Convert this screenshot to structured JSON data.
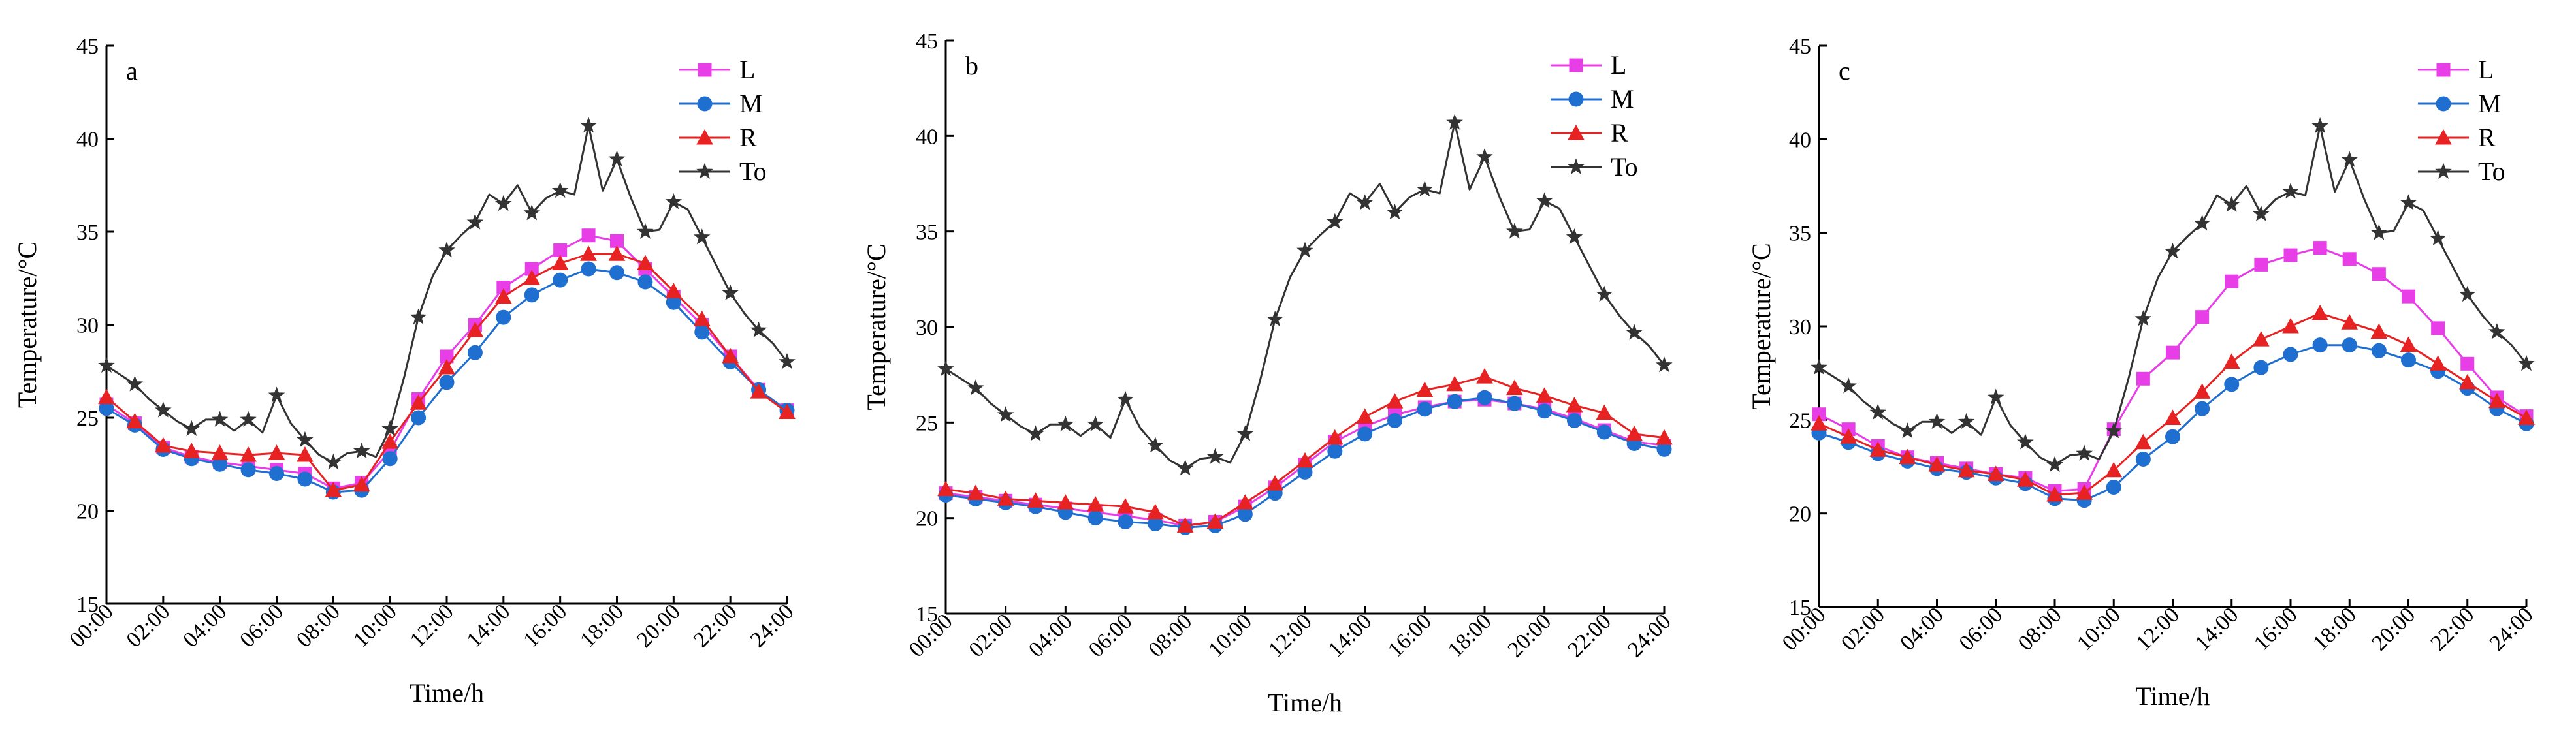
{
  "chart_data": [
    {
      "type": "line",
      "panel_label": "a",
      "xlabel": "Time/h",
      "ylabel": "Temperature/°C",
      "xlim": [
        0,
        24
      ],
      "ylim": [
        15,
        45
      ],
      "xticks": [
        0,
        2,
        4,
        6,
        8,
        10,
        12,
        14,
        16,
        18,
        20,
        22,
        24
      ],
      "xtick_labels": [
        "00:00",
        "02:00",
        "04:00",
        "06:00",
        "08:00",
        "10:00",
        "12:00",
        "14:00",
        "16:00",
        "18:00",
        "20:00",
        "22:00",
        "24:00"
      ],
      "yticks": [
        15,
        20,
        25,
        30,
        35,
        40,
        45
      ],
      "ytick_labels": [
        "15",
        "20",
        "25",
        "30",
        "35",
        "40",
        "45"
      ],
      "legend_position": "top-right",
      "series": [
        {
          "name": "L",
          "color": "#e83ee8",
          "marker": "square",
          "x": [
            0,
            1,
            2,
            3,
            4,
            5,
            6,
            7,
            8,
            9,
            10,
            11,
            12,
            13,
            14,
            15,
            16,
            17,
            18,
            19,
            20,
            21,
            22,
            23,
            24
          ],
          "values": [
            25.7,
            24.7,
            23.4,
            22.9,
            22.6,
            22.4,
            22.2,
            22.0,
            21.2,
            21.5,
            23.2,
            26.0,
            28.3,
            30.0,
            32.0,
            33.0,
            34.0,
            34.8,
            34.5,
            33.0,
            31.5,
            30.0,
            28.3,
            26.5,
            25.4
          ]
        },
        {
          "name": "M",
          "color": "#1f6fd1",
          "marker": "circle",
          "x": [
            0,
            1,
            2,
            3,
            4,
            5,
            6,
            7,
            8,
            9,
            10,
            11,
            12,
            13,
            14,
            15,
            16,
            17,
            18,
            19,
            20,
            21,
            22,
            23,
            24
          ],
          "values": [
            25.5,
            24.6,
            23.3,
            22.8,
            22.5,
            22.2,
            22.0,
            21.7,
            21.0,
            21.1,
            22.8,
            25.0,
            26.9,
            28.5,
            30.4,
            31.6,
            32.4,
            33.0,
            32.8,
            32.3,
            31.2,
            29.6,
            28.0,
            26.5,
            25.4
          ]
        },
        {
          "name": "R",
          "color": "#e62222",
          "marker": "triangle",
          "x": [
            0,
            1,
            2,
            3,
            4,
            5,
            6,
            7,
            8,
            9,
            10,
            11,
            12,
            13,
            14,
            15,
            16,
            17,
            18,
            19,
            20,
            21,
            22,
            23,
            24
          ],
          "values": [
            26.1,
            24.8,
            23.5,
            23.2,
            23.1,
            23.0,
            23.1,
            23.0,
            21.1,
            21.4,
            23.7,
            25.8,
            27.7,
            29.7,
            31.5,
            32.5,
            33.3,
            33.8,
            33.8,
            33.3,
            31.8,
            30.3,
            28.3,
            26.4,
            25.3
          ]
        },
        {
          "name": "To",
          "color": "#333333",
          "marker": "star",
          "x": [
            0,
            0.5,
            1,
            1.5,
            2,
            2.5,
            3,
            3.5,
            4,
            4.5,
            5,
            5.5,
            6,
            6.5,
            7,
            7.5,
            8,
            8.5,
            9,
            9.5,
            10,
            10.5,
            11,
            11.5,
            12,
            12.5,
            13,
            13.5,
            14,
            14.5,
            15,
            15.5,
            16,
            16.5,
            17,
            17.5,
            18,
            18.5,
            19,
            19.5,
            20,
            20.5,
            21,
            21.5,
            22,
            22.5,
            23,
            23.5,
            24
          ],
          "values": [
            27.8,
            27.3,
            26.8,
            26.0,
            25.4,
            24.8,
            24.4,
            24.9,
            24.9,
            24.3,
            24.9,
            24.2,
            26.2,
            24.7,
            23.8,
            23.0,
            22.6,
            23.1,
            23.2,
            22.9,
            24.4,
            27.2,
            30.4,
            32.6,
            34.0,
            34.8,
            35.5,
            37.0,
            36.5,
            37.5,
            36.0,
            36.8,
            37.2,
            37.0,
            40.7,
            37.2,
            38.9,
            36.8,
            35.0,
            35.1,
            36.6,
            36.2,
            34.7,
            33.2,
            31.7,
            30.6,
            29.7,
            29.0,
            28.0
          ]
        }
      ]
    },
    {
      "type": "line",
      "panel_label": "b",
      "xlabel": "Time/h",
      "ylabel": "Temperature/°C",
      "xlim": [
        0,
        24
      ],
      "ylim": [
        15,
        45
      ],
      "xticks": [
        0,
        2,
        4,
        6,
        8,
        10,
        12,
        14,
        16,
        18,
        20,
        22,
        24
      ],
      "xtick_labels": [
        "00:00",
        "02:00",
        "04:00",
        "06:00",
        "08:00",
        "10:00",
        "12:00",
        "14:00",
        "16:00",
        "18:00",
        "20:00",
        "22:00",
        "24:00"
      ],
      "yticks": [
        15,
        20,
        25,
        30,
        35,
        40,
        45
      ],
      "ytick_labels": [
        "15",
        "20",
        "25",
        "30",
        "35",
        "40",
        "45"
      ],
      "legend_position": "top-right",
      "series": [
        {
          "name": "L",
          "color": "#e83ee8",
          "marker": "square",
          "x": [
            0,
            1,
            2,
            3,
            4,
            5,
            6,
            7,
            8,
            9,
            10,
            11,
            12,
            13,
            14,
            15,
            16,
            17,
            18,
            19,
            20,
            21,
            22,
            23,
            24
          ],
          "values": [
            21.3,
            21.1,
            20.9,
            20.7,
            20.5,
            20.3,
            20.1,
            19.9,
            19.6,
            19.8,
            20.6,
            21.6,
            22.8,
            24.0,
            24.8,
            25.4,
            25.8,
            26.1,
            26.2,
            26.0,
            25.7,
            25.2,
            24.6,
            24.0,
            23.8
          ]
        },
        {
          "name": "M",
          "color": "#1f6fd1",
          "marker": "circle",
          "x": [
            0,
            1,
            2,
            3,
            4,
            5,
            6,
            7,
            8,
            9,
            10,
            11,
            12,
            13,
            14,
            15,
            16,
            17,
            18,
            19,
            20,
            21,
            22,
            23,
            24
          ],
          "values": [
            21.2,
            21.0,
            20.8,
            20.6,
            20.3,
            20.0,
            19.8,
            19.7,
            19.5,
            19.6,
            20.2,
            21.3,
            22.4,
            23.5,
            24.4,
            25.1,
            25.7,
            26.1,
            26.3,
            26.0,
            25.6,
            25.1,
            24.5,
            23.9,
            23.6
          ]
        },
        {
          "name": "R",
          "color": "#e62222",
          "marker": "triangle",
          "x": [
            0,
            1,
            2,
            3,
            4,
            5,
            6,
            7,
            8,
            9,
            10,
            11,
            12,
            13,
            14,
            15,
            16,
            17,
            18,
            19,
            20,
            21,
            22,
            23,
            24
          ],
          "values": [
            21.5,
            21.3,
            21.0,
            20.9,
            20.8,
            20.7,
            20.6,
            20.3,
            19.6,
            19.8,
            20.8,
            21.8,
            23.0,
            24.2,
            25.3,
            26.1,
            26.7,
            27.0,
            27.4,
            26.8,
            26.4,
            25.9,
            25.5,
            24.4,
            24.2
          ]
        },
        {
          "name": "To",
          "color": "#333333",
          "marker": "star",
          "x": [
            0,
            0.5,
            1,
            1.5,
            2,
            2.5,
            3,
            3.5,
            4,
            4.5,
            5,
            5.5,
            6,
            6.5,
            7,
            7.5,
            8,
            8.5,
            9,
            9.5,
            10,
            10.5,
            11,
            11.5,
            12,
            12.5,
            13,
            13.5,
            14,
            14.5,
            15,
            15.5,
            16,
            16.5,
            17,
            17.5,
            18,
            18.5,
            19,
            19.5,
            20,
            20.5,
            21,
            21.5,
            22,
            22.5,
            23,
            23.5,
            24
          ],
          "values": [
            27.8,
            27.3,
            26.8,
            26.0,
            25.4,
            24.8,
            24.4,
            24.9,
            24.9,
            24.3,
            24.9,
            24.2,
            26.2,
            24.7,
            23.8,
            23.0,
            22.6,
            23.1,
            23.2,
            22.9,
            24.4,
            27.2,
            30.4,
            32.6,
            34.0,
            34.8,
            35.5,
            37.0,
            36.5,
            37.5,
            36.0,
            36.8,
            37.2,
            37.0,
            40.7,
            37.2,
            38.9,
            36.8,
            35.0,
            35.1,
            36.6,
            36.2,
            34.7,
            33.2,
            31.7,
            30.6,
            29.7,
            29.0,
            28.0
          ]
        }
      ]
    },
    {
      "type": "line",
      "panel_label": "c",
      "xlabel": "Time/h",
      "ylabel": "Temperature/°C",
      "xlim": [
        0,
        24
      ],
      "ylim": [
        15,
        45
      ],
      "xticks": [
        0,
        2,
        4,
        6,
        8,
        10,
        12,
        14,
        16,
        18,
        20,
        22,
        24
      ],
      "xtick_labels": [
        "00:00",
        "02:00",
        "04:00",
        "06:00",
        "08:00",
        "10:00",
        "12:00",
        "14:00",
        "16:00",
        "18:00",
        "20:00",
        "22:00",
        "24:00"
      ],
      "yticks": [
        15,
        20,
        25,
        30,
        35,
        40,
        45
      ],
      "ytick_labels": [
        "15",
        "20",
        "25",
        "30",
        "35",
        "40",
        "45"
      ],
      "legend_position": "top-right",
      "series": [
        {
          "name": "L",
          "color": "#e83ee8",
          "marker": "square",
          "x": [
            0,
            1,
            2,
            3,
            4,
            5,
            6,
            7,
            8,
            9,
            10,
            11,
            12,
            13,
            14,
            15,
            16,
            17,
            18,
            19,
            20,
            21,
            22,
            23,
            24
          ],
          "values": [
            25.3,
            24.5,
            23.6,
            23.0,
            22.7,
            22.4,
            22.1,
            21.9,
            21.2,
            21.3,
            24.5,
            27.2,
            28.6,
            30.5,
            32.4,
            33.3,
            33.8,
            34.2,
            33.6,
            32.8,
            31.6,
            29.9,
            28.0,
            26.2,
            25.2
          ]
        },
        {
          "name": "M",
          "color": "#1f6fd1",
          "marker": "circle",
          "x": [
            0,
            1,
            2,
            3,
            4,
            5,
            6,
            7,
            8,
            9,
            10,
            11,
            12,
            13,
            14,
            15,
            16,
            17,
            18,
            19,
            20,
            21,
            22,
            23,
            24
          ],
          "values": [
            24.3,
            23.8,
            23.2,
            22.8,
            22.4,
            22.2,
            21.9,
            21.6,
            20.8,
            20.7,
            21.4,
            22.9,
            24.1,
            25.6,
            26.9,
            27.8,
            28.5,
            29.0,
            29.0,
            28.7,
            28.2,
            27.6,
            26.7,
            25.6,
            24.8
          ]
        },
        {
          "name": "R",
          "color": "#e62222",
          "marker": "triangle",
          "x": [
            0,
            1,
            2,
            3,
            4,
            5,
            6,
            7,
            8,
            9,
            10,
            11,
            12,
            13,
            14,
            15,
            16,
            17,
            18,
            19,
            20,
            21,
            22,
            23,
            24
          ],
          "values": [
            24.8,
            24.1,
            23.4,
            23.0,
            22.6,
            22.3,
            22.1,
            21.8,
            21.0,
            21.1,
            22.3,
            23.8,
            25.1,
            26.5,
            28.1,
            29.3,
            30.0,
            30.7,
            30.2,
            29.7,
            29.0,
            28.0,
            27.0,
            26.0,
            25.1
          ]
        },
        {
          "name": "To",
          "color": "#333333",
          "marker": "star",
          "x": [
            0,
            0.5,
            1,
            1.5,
            2,
            2.5,
            3,
            3.5,
            4,
            4.5,
            5,
            5.5,
            6,
            6.5,
            7,
            7.5,
            8,
            8.5,
            9,
            9.5,
            10,
            10.5,
            11,
            11.5,
            12,
            12.5,
            13,
            13.5,
            14,
            14.5,
            15,
            15.5,
            16,
            16.5,
            17,
            17.5,
            18,
            18.5,
            19,
            19.5,
            20,
            20.5,
            21,
            21.5,
            22,
            22.5,
            23,
            23.5,
            24
          ],
          "values": [
            27.8,
            27.3,
            26.8,
            26.0,
            25.4,
            24.8,
            24.4,
            24.9,
            24.9,
            24.3,
            24.9,
            24.2,
            26.2,
            24.7,
            23.8,
            23.0,
            22.6,
            23.1,
            23.2,
            22.9,
            24.4,
            27.2,
            30.4,
            32.6,
            34.0,
            34.8,
            35.5,
            37.0,
            36.5,
            37.5,
            36.0,
            36.8,
            37.2,
            37.0,
            40.7,
            37.2,
            38.9,
            36.8,
            35.0,
            35.1,
            36.6,
            36.2,
            34.7,
            33.2,
            31.7,
            30.6,
            29.7,
            29.0,
            28.0
          ]
        }
      ]
    }
  ]
}
